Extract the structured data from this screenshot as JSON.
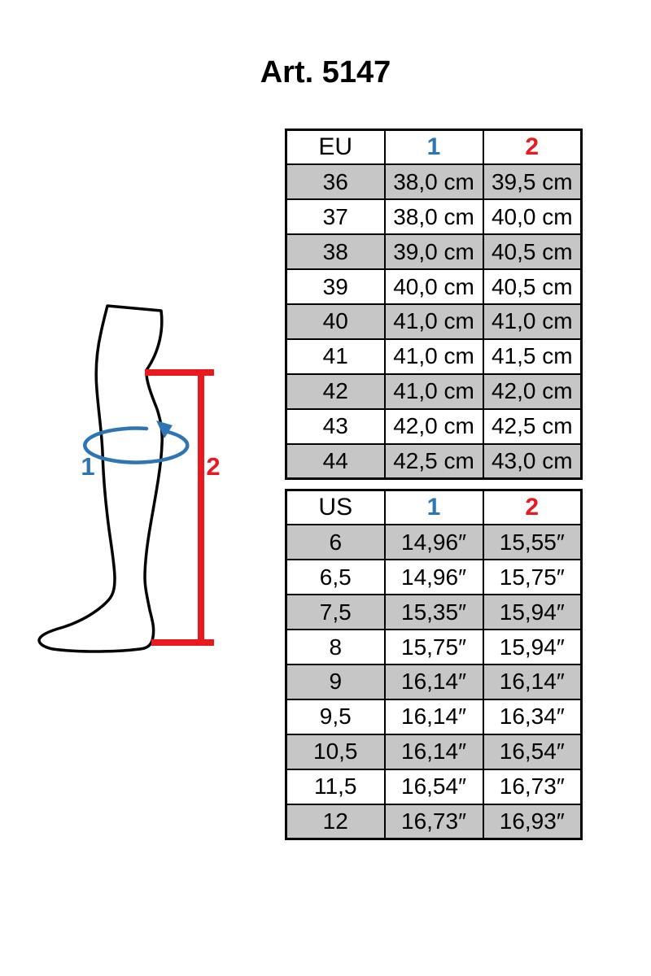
{
  "title": "Art. 5147",
  "figure": {
    "circumference_label": "1",
    "height_label": "2"
  },
  "colors": {
    "col1_accent": "#2e75b6",
    "col2_accent": "#e8191f",
    "row_shading": "#c6c6c6"
  },
  "eu_table": {
    "headers": [
      "EU",
      "1",
      "2"
    ],
    "rows": [
      [
        "36",
        "38,0 cm",
        "39,5 cm"
      ],
      [
        "37",
        "38,0 cm",
        "40,0 cm"
      ],
      [
        "38",
        "39,0 cm",
        "40,5 cm"
      ],
      [
        "39",
        "40,0 cm",
        "40,5 cm"
      ],
      [
        "40",
        "41,0 cm",
        "41,0 cm"
      ],
      [
        "41",
        "41,0 cm",
        "41,5 cm"
      ],
      [
        "42",
        "41,0 cm",
        "42,0 cm"
      ],
      [
        "43",
        "42,0 cm",
        "42,5 cm"
      ],
      [
        "44",
        "42,5 cm",
        "43,0 cm"
      ]
    ]
  },
  "us_table": {
    "headers": [
      "US",
      "1",
      "2"
    ],
    "rows": [
      [
        "6",
        "14,96″",
        "15,55″"
      ],
      [
        "6,5",
        "14,96″",
        "15,75″"
      ],
      [
        "7,5",
        "15,35″",
        "15,94″"
      ],
      [
        "8",
        "15,75″",
        "15,94″"
      ],
      [
        "9",
        "16,14″",
        "16,14″"
      ],
      [
        "9,5",
        "16,14″",
        "16,34″"
      ],
      [
        "10,5",
        "16,14″",
        "16,54″"
      ],
      [
        "11,5",
        "16,54″",
        "16,73″"
      ],
      [
        "12",
        "16,73″",
        "16,93″"
      ]
    ]
  }
}
